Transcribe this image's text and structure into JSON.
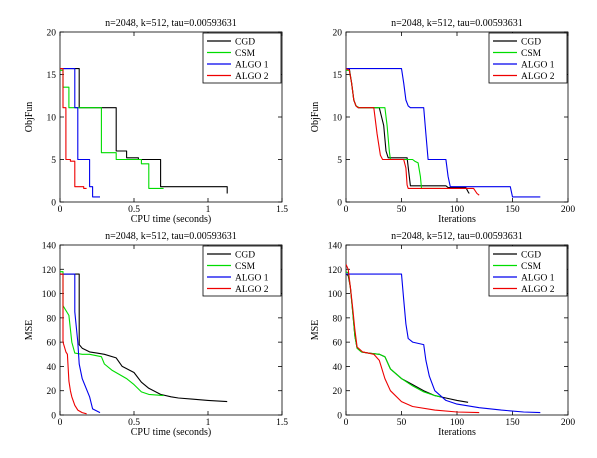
{
  "figure": {
    "legend_entries": [
      "CGD",
      "CSM",
      "ALGO 1",
      "ALGO 2"
    ],
    "colors": {
      "CGD": "#000000",
      "CSM": "#00dd00",
      "ALGO 1": "#0000ee",
      "ALGO 2": "#ee0000"
    }
  },
  "chart_data": [
    {
      "id": "objfun-cpu",
      "type": "line",
      "title": "n=2048, k=512, tau=0.00593631",
      "xlabel": "CPU time (seconds)",
      "ylabel": "ObjFun",
      "xlim": [
        0,
        1.5
      ],
      "ylim": [
        0,
        20
      ],
      "xticks": [
        "0",
        "0.5",
        "1",
        "1.5"
      ],
      "xtick_values": [
        0,
        0.5,
        1,
        1.5
      ],
      "yticks": [
        "0",
        "5",
        "10",
        "15",
        "20"
      ],
      "ytick_values": [
        0,
        5,
        10,
        15,
        20
      ],
      "legend": "top-right",
      "series": [
        {
          "name": "CGD",
          "x": [
            0,
            0.13,
            0.13,
            0.38,
            0.38,
            0.45,
            0.45,
            0.53,
            0.53,
            0.68,
            0.68,
            1.13,
            1.13
          ],
          "y": [
            15.7,
            15.7,
            11.1,
            11.1,
            6.0,
            6.0,
            5.2,
            5.2,
            5.0,
            5.0,
            1.8,
            1.8,
            1.0
          ]
        },
        {
          "name": "CSM",
          "x": [
            0,
            0.02,
            0.02,
            0.06,
            0.06,
            0.28,
            0.28,
            0.38,
            0.38,
            0.55,
            0.55,
            0.6,
            0.6,
            0.7
          ],
          "y": [
            15.5,
            15.5,
            13.5,
            13.5,
            11.1,
            11.1,
            5.8,
            5.8,
            5.0,
            5.0,
            4.5,
            4.5,
            1.6,
            1.6
          ]
        },
        {
          "name": "ALGO 1",
          "x": [
            0,
            0.1,
            0.1,
            0.12,
            0.12,
            0.2,
            0.2,
            0.22,
            0.22,
            0.27
          ],
          "y": [
            15.7,
            15.7,
            11.1,
            11.1,
            5.0,
            5.0,
            1.8,
            1.8,
            0.6,
            0.6
          ]
        },
        {
          "name": "ALGO 2",
          "x": [
            0,
            0.02,
            0.02,
            0.04,
            0.04,
            0.07,
            0.07,
            0.1,
            0.1,
            0.16,
            0.16,
            0.18
          ],
          "y": [
            15.7,
            15.7,
            11.1,
            11.1,
            5.0,
            5.0,
            4.8,
            4.8,
            1.8,
            1.8,
            1.6,
            1.6
          ]
        }
      ]
    },
    {
      "id": "objfun-iter",
      "type": "line",
      "title": "n=2048, k=512, tau=0.00593631",
      "xlabel": "Iterations",
      "ylabel": "ObjFun",
      "xlim": [
        0,
        200
      ],
      "ylim": [
        0,
        20
      ],
      "xticks": [
        "0",
        "50",
        "100",
        "150",
        "200"
      ],
      "xtick_values": [
        0,
        50,
        100,
        150,
        200
      ],
      "yticks": [
        "0",
        "5",
        "10",
        "15",
        "20"
      ],
      "ytick_values": [
        0,
        5,
        10,
        15,
        20
      ],
      "legend": "top-right",
      "series": [
        {
          "name": "CGD",
          "x": [
            0,
            3,
            5,
            7,
            9,
            11,
            30,
            34,
            36,
            38,
            55,
            57,
            58,
            90,
            92,
            108,
            110,
            111
          ],
          "y": [
            15.7,
            15.7,
            14,
            12,
            11.3,
            11.1,
            11.1,
            9,
            6,
            5.2,
            5.2,
            3,
            1.9,
            1.9,
            1.7,
            1.7,
            1.2,
            1.0
          ]
        },
        {
          "name": "CSM",
          "x": [
            0,
            3,
            5,
            7,
            9,
            12,
            35,
            37,
            39,
            40,
            60,
            62,
            65,
            67,
            68,
            85
          ],
          "y": [
            15.5,
            15.5,
            14,
            12,
            11.3,
            11.1,
            11.1,
            9,
            6,
            5.0,
            5.0,
            4.8,
            4.6,
            3,
            1.6,
            1.6
          ]
        },
        {
          "name": "ALGO 1",
          "x": [
            0,
            50,
            52,
            54,
            56,
            58,
            70,
            72,
            74,
            90,
            92,
            94,
            148,
            150,
            175
          ],
          "y": [
            15.7,
            15.7,
            14,
            12,
            11.3,
            11.1,
            11.1,
            8,
            5.0,
            5.0,
            3,
            1.8,
            1.8,
            0.6,
            0.6
          ]
        },
        {
          "name": "ALGO 2",
          "x": [
            0,
            3,
            5,
            7,
            9,
            11,
            25,
            28,
            31,
            33,
            52,
            54,
            55,
            56,
            58,
            115,
            118,
            120
          ],
          "y": [
            15.7,
            15.5,
            14,
            12,
            11.3,
            11.1,
            11.1,
            8,
            5.5,
            5.0,
            5.0,
            4.0,
            2.0,
            1.6,
            1.6,
            1.6,
            1.0,
            0.8
          ]
        }
      ]
    },
    {
      "id": "mse-cpu",
      "type": "line",
      "title": "n=2048, k=512, tau=0.00593631",
      "xlabel": "CPU time (seconds)",
      "ylabel": "MSE",
      "xlim": [
        0,
        1.5
      ],
      "ylim": [
        0,
        140
      ],
      "xticks": [
        "0",
        "0.5",
        "1",
        "1.5"
      ],
      "xtick_values": [
        0,
        0.5,
        1,
        1.5
      ],
      "yticks": [
        "0",
        "20",
        "40",
        "60",
        "80",
        "100",
        "120",
        "140"
      ],
      "ytick_values": [
        0,
        20,
        40,
        60,
        80,
        100,
        120,
        140
      ],
      "legend": "top-right",
      "series": [
        {
          "name": "CGD",
          "x": [
            0,
            0.13,
            0.13,
            0.15,
            0.2,
            0.25,
            0.3,
            0.38,
            0.42,
            0.5,
            0.55,
            0.6,
            0.68,
            0.75,
            0.8,
            0.9,
            1.0,
            1.13
          ],
          "y": [
            116,
            116,
            58,
            55,
            52,
            51,
            50,
            47,
            40,
            35,
            27,
            22,
            17,
            15,
            14,
            13,
            12,
            11
          ]
        },
        {
          "name": "CSM",
          "x": [
            0,
            0.02,
            0.02,
            0.06,
            0.08,
            0.1,
            0.15,
            0.2,
            0.28,
            0.3,
            0.35,
            0.45,
            0.5,
            0.55,
            0.6,
            0.7
          ],
          "y": [
            118,
            118,
            90,
            82,
            60,
            51,
            50,
            50,
            48,
            42,
            37,
            30,
            25,
            19,
            17,
            16
          ]
        },
        {
          "name": "ALGO 1",
          "x": [
            0,
            0.1,
            0.1,
            0.12,
            0.13,
            0.15,
            0.2,
            0.22,
            0.27
          ],
          "y": [
            116,
            116,
            85,
            60,
            42,
            30,
            15,
            5,
            2
          ]
        },
        {
          "name": "ALGO 2",
          "x": [
            0,
            0.02,
            0.02,
            0.04,
            0.05,
            0.06,
            0.07,
            0.08,
            0.1,
            0.12,
            0.15,
            0.18
          ],
          "y": [
            116,
            116,
            60,
            52,
            50,
            28,
            20,
            15,
            8,
            4,
            2,
            1
          ]
        }
      ]
    },
    {
      "id": "mse-iter",
      "type": "line",
      "title": "n=2048, k=512, tau=0.00593631",
      "xlabel": "Iterations",
      "ylabel": "MSE",
      "xlim": [
        0,
        200
      ],
      "ylim": [
        0,
        140
      ],
      "xticks": [
        "0",
        "50",
        "100",
        "150",
        "200"
      ],
      "xtick_values": [
        0,
        50,
        100,
        150,
        200
      ],
      "yticks": [
        "0",
        "20",
        "40",
        "60",
        "80",
        "100",
        "120",
        "140"
      ],
      "ytick_values": [
        0,
        20,
        40,
        60,
        80,
        100,
        120,
        140
      ],
      "legend": "top-right",
      "series": [
        {
          "name": "CGD",
          "x": [
            0,
            2,
            4,
            6,
            8,
            10,
            14,
            20,
            30,
            35,
            40,
            50,
            60,
            70,
            80,
            90,
            100,
            110
          ],
          "y": [
            116,
            115,
            105,
            85,
            65,
            55,
            52,
            51,
            50,
            48,
            38,
            30,
            25,
            20,
            16,
            14,
            12,
            10.5
          ]
        },
        {
          "name": "CSM",
          "x": [
            0,
            2,
            4,
            6,
            8,
            10,
            14,
            20,
            30,
            35,
            40,
            50,
            60,
            70,
            80,
            85
          ],
          "y": [
            118,
            117,
            105,
            85,
            65,
            55,
            52,
            51,
            50,
            48,
            38,
            30,
            24,
            19,
            16,
            15
          ]
        },
        {
          "name": "ALGO 1",
          "x": [
            0,
            5,
            50,
            52,
            54,
            56,
            60,
            70,
            72,
            75,
            80,
            90,
            100,
            120,
            140,
            160,
            175
          ],
          "y": [
            116,
            116,
            116,
            95,
            75,
            63,
            60,
            58,
            45,
            32,
            20,
            12,
            9,
            6,
            4,
            2.5,
            2
          ]
        },
        {
          "name": "ALGO 2",
          "x": [
            0,
            2,
            4,
            6,
            8,
            10,
            15,
            20,
            25,
            30,
            35,
            40,
            50,
            60,
            80,
            100,
            120
          ],
          "y": [
            124,
            120,
            105,
            88,
            70,
            56,
            52,
            51,
            50,
            45,
            30,
            20,
            11,
            7,
            4,
            2.5,
            2
          ]
        }
      ]
    }
  ]
}
